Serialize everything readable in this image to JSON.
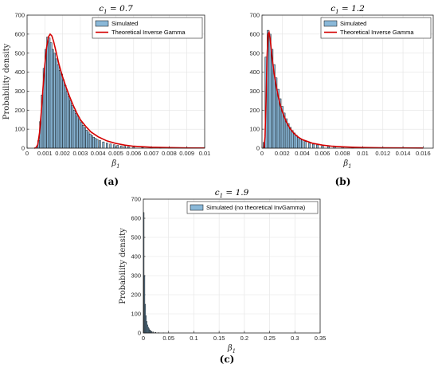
{
  "chart_data": [
    {
      "type": "bar",
      "panel_label": "(a)",
      "title": "c_1 = 0.7",
      "xlabel": "β_1",
      "ylabel": "Probability density",
      "xlim": [
        0,
        0.01
      ],
      "ylim": [
        0,
        700
      ],
      "xticks": [
        "0",
        "0.001",
        "0.002",
        "0.003",
        "0.004",
        "0.005",
        "0.006",
        "0.007",
        "0.008",
        "0.009",
        "0.01"
      ],
      "yticks": [
        "0",
        "100",
        "200",
        "300",
        "400",
        "500",
        "600",
        "700"
      ],
      "grid": true,
      "legend_position": "top-right",
      "series": [
        {
          "name": "Simulated",
          "type": "histogram",
          "color": "#8ab8d8",
          "bin_width": 0.0001,
          "x": [
            0.00055,
            0.00065,
            0.00075,
            0.00085,
            0.00095,
            0.00105,
            0.00115,
            0.00125,
            0.00135,
            0.00145,
            0.00155,
            0.00165,
            0.00175,
            0.00185,
            0.00195,
            0.00205,
            0.00215,
            0.00225,
            0.00235,
            0.00245,
            0.00255,
            0.00265,
            0.00275,
            0.00285,
            0.00295,
            0.00305,
            0.00315,
            0.00325,
            0.00335,
            0.00345,
            0.00355,
            0.00365,
            0.00375,
            0.00385,
            0.00395,
            0.0041,
            0.0043,
            0.0045,
            0.0047,
            0.0049,
            0.0051,
            0.0053,
            0.0055,
            0.0057,
            0.006,
            0.0065,
            0.007,
            0.0075,
            0.008,
            0.009
          ],
          "values": [
            8,
            40,
            140,
            280,
            420,
            520,
            585,
            580,
            555,
            520,
            500,
            470,
            440,
            410,
            390,
            360,
            330,
            300,
            270,
            250,
            225,
            200,
            182,
            168,
            150,
            135,
            120,
            108,
            95,
            85,
            75,
            66,
            58,
            52,
            46,
            40,
            33,
            27,
            22,
            18,
            15,
            12,
            10,
            8,
            6,
            4,
            3,
            2,
            1,
            1
          ]
        },
        {
          "name": "Theoretical Inverse Gamma",
          "type": "line",
          "color": "#d40000",
          "x": [
            0.0004,
            0.0005,
            0.0006,
            0.0007,
            0.0008,
            0.0009,
            0.001,
            0.0011,
            0.0012,
            0.0013,
            0.0014,
            0.0015,
            0.0016,
            0.0018,
            0.002,
            0.0022,
            0.0024,
            0.0026,
            0.0028,
            0.003,
            0.0033,
            0.0036,
            0.004,
            0.0045,
            0.005,
            0.0055,
            0.006,
            0.007,
            0.008,
            0.009,
            0.01
          ],
          "values": [
            0,
            2,
            18,
            80,
            190,
            320,
            440,
            530,
            585,
            600,
            590,
            560,
            520,
            440,
            375,
            320,
            270,
            225,
            185,
            150,
            115,
            85,
            60,
            38,
            25,
            16,
            10,
            5,
            3,
            1.5,
            1
          ]
        }
      ]
    },
    {
      "type": "bar",
      "panel_label": "(b)",
      "title": "c_1 = 1.2",
      "xlabel": "β_1",
      "ylabel": "",
      "xlim": [
        0,
        0.017
      ],
      "ylim": [
        0,
        700
      ],
      "xticks": [
        "0",
        "0.002",
        "0.004",
        "0.006",
        "0.008",
        "0.01",
        "0.012",
        "0.014",
        "0.016"
      ],
      "yticks": [
        "0",
        "100",
        "200",
        "300",
        "400",
        "500",
        "600",
        "700"
      ],
      "grid": true,
      "legend_position": "top-right",
      "series": [
        {
          "name": "Simulated",
          "type": "histogram",
          "color": "#8ab8d8",
          "bin_width": 0.0002,
          "x": [
            0.0002,
            0.0004,
            0.0006,
            0.0008,
            0.001,
            0.0012,
            0.0014,
            0.0016,
            0.0018,
            0.002,
            0.0022,
            0.0024,
            0.0026,
            0.0028,
            0.003,
            0.0032,
            0.0034,
            0.0036,
            0.0038,
            0.004,
            0.0043,
            0.0047,
            0.0051,
            0.0055,
            0.006,
            0.0066,
            0.0072,
            0.008,
            0.009,
            0.01,
            0.012
          ],
          "values": [
            30,
            480,
            620,
            600,
            520,
            440,
            370,
            310,
            260,
            220,
            185,
            155,
            130,
            110,
            93,
            80,
            68,
            58,
            50,
            43,
            35,
            27,
            21,
            17,
            12,
            9,
            7,
            5,
            3,
            2,
            1
          ]
        },
        {
          "name": "Theoretical Inverse Gamma",
          "type": "line",
          "color": "#d40000",
          "x": [
            0.0002,
            0.0003,
            0.0004,
            0.0005,
            0.0006,
            0.0007,
            0.0008,
            0.0009,
            0.001,
            0.0012,
            0.0014,
            0.0016,
            0.0018,
            0.002,
            0.0024,
            0.0028,
            0.0032,
            0.0036,
            0.004,
            0.005,
            0.006,
            0.007,
            0.008,
            0.009,
            0.01,
            0.012,
            0.014,
            0.016
          ],
          "values": [
            0,
            60,
            250,
            480,
            600,
            610,
            580,
            530,
            475,
            395,
            330,
            275,
            230,
            195,
            140,
            102,
            76,
            58,
            45,
            26,
            16,
            10,
            7,
            5,
            3.5,
            2,
            1.2,
            0.8
          ]
        }
      ]
    },
    {
      "type": "bar",
      "panel_label": "(c)",
      "title": "c_1 = 1.9",
      "xlabel": "β_1",
      "ylabel": "Probability density",
      "xlim": [
        0,
        0.35
      ],
      "ylim": [
        0,
        700
      ],
      "xticks": [
        "0",
        "0.05",
        "0.1",
        "0.15",
        "0.2",
        "0.25",
        "0.3",
        "0.35"
      ],
      "yticks": [
        "0",
        "100",
        "200",
        "300",
        "400",
        "500",
        "600",
        "700"
      ],
      "grid": true,
      "legend_position": "top-right",
      "series": [
        {
          "name": "Simulated (no theoretical InvGamma)",
          "type": "histogram",
          "color": "#8ab8d8",
          "bin_width": 0.0015,
          "x": [
            0.00075,
            0.00225,
            0.00375,
            0.00525,
            0.00675,
            0.00825,
            0.00975,
            0.01125,
            0.01275,
            0.01425,
            0.0165,
            0.0195,
            0.024,
            0.03,
            0.04
          ],
          "values": [
            630,
            300,
            150,
            90,
            60,
            42,
            30,
            22,
            16,
            12,
            8,
            5,
            3,
            1.5,
            0.5
          ]
        }
      ]
    }
  ]
}
